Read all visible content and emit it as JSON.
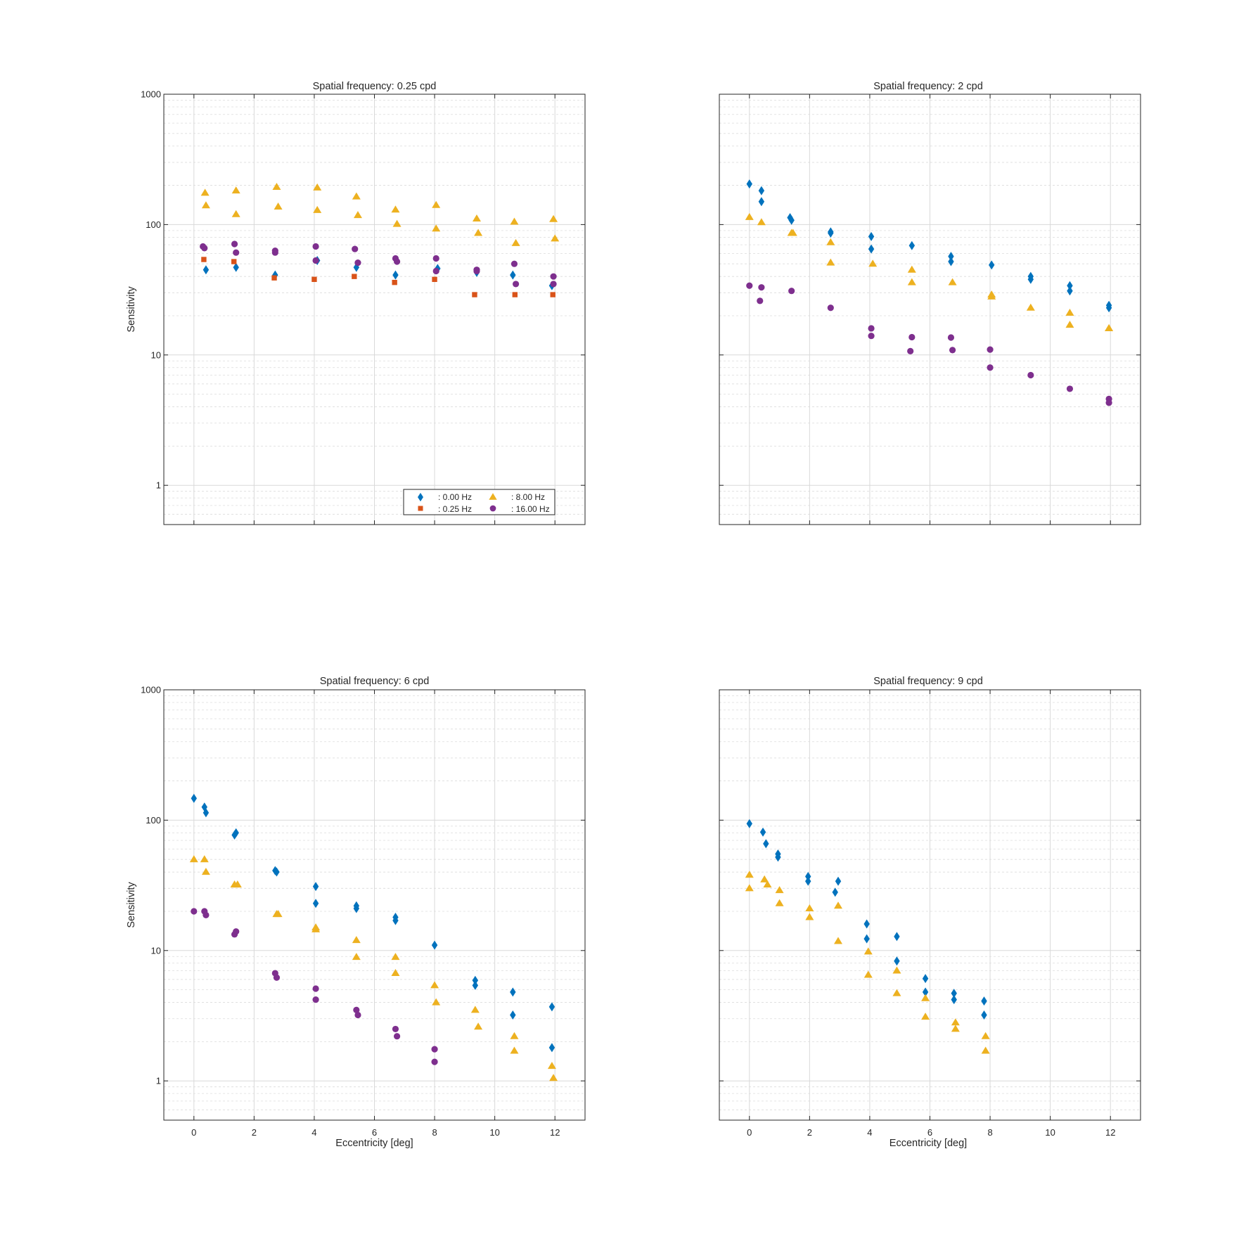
{
  "figure": {
    "background": "#ffffff",
    "series_colors": {
      "0.00 Hz": "#0072BD",
      "0.25 Hz": "#D95319",
      "8.00 Hz": "#EDB120",
      "16.00 Hz": "#7E2F8E"
    },
    "legend": {
      "entries": [
        {
          "label": ": 0.00 Hz",
          "series": "0.00 Hz",
          "marker": "diamond"
        },
        {
          "label": ": 0.25 Hz",
          "series": "0.25 Hz",
          "marker": "square"
        },
        {
          "label": ": 8.00 Hz",
          "series": "8.00 Hz",
          "marker": "triangle"
        },
        {
          "label": ": 16.00 Hz",
          "series": "16.00 Hz",
          "marker": "circle"
        }
      ],
      "location": "bottom-right of first panel",
      "columns": 2
    }
  },
  "chart_data": [
    {
      "type": "scatter",
      "title": "Spatial frequency: 0.25 cpd",
      "xlabel": "",
      "ylabel": "Sensitivity",
      "xscale": "linear",
      "yscale": "log",
      "xlim": [
        -1,
        13
      ],
      "ylim": [
        0.5,
        1000
      ],
      "xticks": [
        0,
        2,
        4,
        6,
        8,
        10,
        12
      ],
      "xticklabels": [],
      "yticks": [
        1,
        10,
        100,
        1000
      ],
      "yticklabels": [
        "1",
        "10",
        "100",
        "1000"
      ],
      "grid": true,
      "minor_grid": true,
      "series": [
        {
          "name": "0.00 Hz",
          "marker": "diamond",
          "color": "#0072BD",
          "points": [
            [
              0.4,
              45
            ],
            [
              1.4,
              47
            ],
            [
              2.7,
              41
            ],
            [
              4.1,
              53
            ],
            [
              5.4,
              47
            ],
            [
              6.7,
              41
            ],
            [
              8.1,
              46
            ],
            [
              9.4,
              43
            ],
            [
              10.6,
              41
            ],
            [
              11.9,
              34
            ]
          ]
        },
        {
          "name": "0.25 Hz",
          "marker": "square",
          "color": "#D95319",
          "points": [
            [
              0.33,
              54
            ],
            [
              1.33,
              52
            ],
            [
              2.67,
              39
            ],
            [
              4.0,
              38
            ],
            [
              5.33,
              40
            ],
            [
              6.67,
              36
            ],
            [
              8.0,
              38
            ],
            [
              9.33,
              29
            ],
            [
              10.67,
              29
            ],
            [
              11.93,
              29
            ]
          ]
        },
        {
          "name": "8.00 Hz",
          "marker": "triangle",
          "color": "#EDB120",
          "points": [
            [
              0.37,
              175
            ],
            [
              0.4,
              140
            ],
            [
              1.4,
              182
            ],
            [
              1.4,
              120
            ],
            [
              2.75,
              194
            ],
            [
              2.8,
              137
            ],
            [
              4.1,
              192
            ],
            [
              4.1,
              129
            ],
            [
              5.4,
              164
            ],
            [
              5.45,
              118
            ],
            [
              6.7,
              130
            ],
            [
              6.75,
              101
            ],
            [
              8.05,
              141
            ],
            [
              8.05,
              93
            ],
            [
              9.4,
              111
            ],
            [
              9.45,
              86
            ],
            [
              10.65,
              105
            ],
            [
              10.7,
              72
            ],
            [
              11.95,
              110
            ],
            [
              12.0,
              78
            ]
          ]
        },
        {
          "name": "16.00 Hz",
          "marker": "circle",
          "color": "#7E2F8E",
          "points": [
            [
              0.3,
              68
            ],
            [
              0.35,
              66
            ],
            [
              1.35,
              71
            ],
            [
              1.4,
              61
            ],
            [
              2.7,
              63
            ],
            [
              2.7,
              61
            ],
            [
              4.05,
              68
            ],
            [
              4.05,
              53
            ],
            [
              5.35,
              65
            ],
            [
              5.45,
              51
            ],
            [
              6.7,
              55
            ],
            [
              6.75,
              52
            ],
            [
              8.05,
              55
            ],
            [
              8.05,
              44
            ],
            [
              9.4,
              45
            ],
            [
              9.4,
              44
            ],
            [
              10.65,
              50
            ],
            [
              10.7,
              35
            ],
            [
              11.95,
              40
            ],
            [
              11.95,
              35
            ]
          ]
        }
      ]
    },
    {
      "type": "scatter",
      "title": "Spatial frequency: 2 cpd",
      "xlabel": "",
      "ylabel": "",
      "xscale": "linear",
      "yscale": "log",
      "xlim": [
        -1,
        13
      ],
      "ylim": [
        0.5,
        1000
      ],
      "xticks": [
        0,
        2,
        4,
        6,
        8,
        10,
        12
      ],
      "xticklabels": [],
      "yticks": [
        1,
        10,
        100,
        1000
      ],
      "yticklabels": [],
      "grid": true,
      "minor_grid": true,
      "series": [
        {
          "name": "0.00 Hz",
          "marker": "diamond",
          "color": "#0072BD",
          "points": [
            [
              0.0,
              205
            ],
            [
              0.4,
              182
            ],
            [
              0.4,
              150
            ],
            [
              1.35,
              113
            ],
            [
              1.4,
              108
            ],
            [
              2.7,
              88
            ],
            [
              2.7,
              86
            ],
            [
              4.05,
              81
            ],
            [
              4.05,
              65
            ],
            [
              5.4,
              69
            ],
            [
              6.7,
              57
            ],
            [
              6.7,
              52
            ],
            [
              8.05,
              49
            ],
            [
              9.35,
              40
            ],
            [
              9.35,
              38
            ],
            [
              10.65,
              34
            ],
            [
              10.65,
              31
            ],
            [
              11.95,
              24
            ],
            [
              11.95,
              23
            ]
          ]
        },
        {
          "name": "8.00 Hz",
          "marker": "triangle",
          "color": "#EDB120",
          "points": [
            [
              0.0,
              114
            ],
            [
              0.4,
              104
            ],
            [
              1.4,
              86
            ],
            [
              1.45,
              86
            ],
            [
              2.7,
              73
            ],
            [
              2.7,
              51
            ],
            [
              4.1,
              50
            ],
            [
              5.4,
              45
            ],
            [
              5.4,
              36
            ],
            [
              6.75,
              36
            ],
            [
              8.05,
              29
            ],
            [
              8.05,
              28
            ],
            [
              9.35,
              23
            ],
            [
              10.65,
              21
            ],
            [
              10.65,
              17
            ],
            [
              11.95,
              16
            ],
            [
              11.95,
              16
            ]
          ]
        },
        {
          "name": "16.00 Hz",
          "marker": "circle",
          "color": "#7E2F8E",
          "points": [
            [
              0.0,
              34
            ],
            [
              0.35,
              26
            ],
            [
              0.4,
              33
            ],
            [
              1.4,
              31
            ],
            [
              2.7,
              23
            ],
            [
              4.05,
              16
            ],
            [
              4.05,
              14
            ],
            [
              5.4,
              13.7
            ],
            [
              5.35,
              10.7
            ],
            [
              6.7,
              13.6
            ],
            [
              6.75,
              10.9
            ],
            [
              8.0,
              11
            ],
            [
              8.0,
              8
            ],
            [
              9.35,
              7
            ],
            [
              10.65,
              5.5
            ],
            [
              11.95,
              4.6
            ],
            [
              11.95,
              4.3
            ]
          ]
        }
      ]
    },
    {
      "type": "scatter",
      "title": "Spatial frequency: 6 cpd",
      "xlabel": "Eccentricity [deg]",
      "ylabel": "Sensitivity",
      "xscale": "linear",
      "yscale": "log",
      "xlim": [
        -1,
        13
      ],
      "ylim": [
        0.5,
        1000
      ],
      "xticks": [
        0,
        2,
        4,
        6,
        8,
        10,
        12
      ],
      "xticklabels": [
        "0",
        "2",
        "4",
        "6",
        "8",
        "10",
        "12"
      ],
      "yticks": [
        1,
        10,
        100,
        1000
      ],
      "yticklabels": [
        "1",
        "10",
        "100",
        "1000"
      ],
      "grid": true,
      "minor_grid": true,
      "series": [
        {
          "name": "0.00 Hz",
          "marker": "diamond",
          "color": "#0072BD",
          "points": [
            [
              0.0,
              147
            ],
            [
              0.35,
              126
            ],
            [
              0.4,
              114
            ],
            [
              1.35,
              77
            ],
            [
              1.4,
              80
            ],
            [
              2.7,
              41
            ],
            [
              2.75,
              40
            ],
            [
              4.05,
              31
            ],
            [
              4.05,
              23
            ],
            [
              5.4,
              22
            ],
            [
              5.4,
              21
            ],
            [
              6.7,
              18
            ],
            [
              6.7,
              17
            ],
            [
              8.0,
              11
            ],
            [
              9.35,
              5.9
            ],
            [
              9.35,
              5.4
            ],
            [
              10.6,
              4.8
            ],
            [
              10.6,
              3.2
            ],
            [
              11.9,
              3.7
            ],
            [
              11.9,
              1.8
            ]
          ]
        },
        {
          "name": "8.00 Hz",
          "marker": "triangle",
          "color": "#EDB120",
          "points": [
            [
              0.0,
              50
            ],
            [
              0.35,
              50
            ],
            [
              0.4,
              40
            ],
            [
              1.35,
              32
            ],
            [
              1.45,
              32
            ],
            [
              2.75,
              19
            ],
            [
              2.8,
              19
            ],
            [
              4.05,
              15
            ],
            [
              4.05,
              14.5
            ],
            [
              5.4,
              12
            ],
            [
              5.4,
              8.9
            ],
            [
              6.7,
              8.9
            ],
            [
              6.7,
              6.7
            ],
            [
              8.0,
              5.4
            ],
            [
              8.05,
              4
            ],
            [
              9.35,
              3.5
            ],
            [
              9.45,
              2.6
            ],
            [
              10.65,
              2.2
            ],
            [
              10.65,
              1.7
            ],
            [
              11.9,
              1.3
            ],
            [
              11.95,
              1.05
            ]
          ]
        },
        {
          "name": "16.00 Hz",
          "marker": "circle",
          "color": "#7E2F8E",
          "points": [
            [
              0.0,
              20
            ],
            [
              0.35,
              20
            ],
            [
              0.4,
              18.7
            ],
            [
              1.35,
              13.3
            ],
            [
              1.4,
              14
            ],
            [
              2.7,
              6.7
            ],
            [
              2.75,
              6.2
            ],
            [
              4.05,
              5.1
            ],
            [
              4.05,
              4.2
            ],
            [
              5.4,
              3.5
            ],
            [
              5.45,
              3.2
            ],
            [
              6.7,
              2.5
            ],
            [
              6.75,
              2.2
            ],
            [
              8.0,
              1.75
            ],
            [
              8.0,
              1.4
            ]
          ]
        }
      ]
    },
    {
      "type": "scatter",
      "title": "Spatial frequency: 9 cpd",
      "xlabel": "Eccentricity [deg]",
      "ylabel": "",
      "xscale": "linear",
      "yscale": "log",
      "xlim": [
        -1,
        13
      ],
      "ylim": [
        0.5,
        1000
      ],
      "xticks": [
        0,
        2,
        4,
        6,
        8,
        10,
        12
      ],
      "xticklabels": [
        "0",
        "2",
        "4",
        "6",
        "8",
        "10",
        "12"
      ],
      "yticks": [
        1,
        10,
        100,
        1000
      ],
      "yticklabels": [],
      "grid": true,
      "minor_grid": true,
      "series": [
        {
          "name": "0.00 Hz",
          "marker": "diamond",
          "color": "#0072BD",
          "points": [
            [
              0.0,
              94
            ],
            [
              0.45,
              81
            ],
            [
              0.55,
              66
            ],
            [
              0.95,
              55
            ],
            [
              0.95,
              52
            ],
            [
              1.95,
              37
            ],
            [
              1.95,
              34
            ],
            [
              2.85,
              28
            ],
            [
              2.95,
              34
            ],
            [
              3.9,
              16
            ],
            [
              3.9,
              12.3
            ],
            [
              4.9,
              12.8
            ],
            [
              4.9,
              8.3
            ],
            [
              5.85,
              6.1
            ],
            [
              5.85,
              4.8
            ],
            [
              6.8,
              4.7
            ],
            [
              6.8,
              4.2
            ],
            [
              7.8,
              4.1
            ],
            [
              7.8,
              3.2
            ]
          ]
        },
        {
          "name": "8.00 Hz",
          "marker": "triangle",
          "color": "#EDB120",
          "points": [
            [
              0.0,
              38
            ],
            [
              0.0,
              30
            ],
            [
              0.5,
              35
            ],
            [
              0.6,
              32
            ],
            [
              1.0,
              29
            ],
            [
              1.0,
              23
            ],
            [
              2.0,
              21
            ],
            [
              2.0,
              18
            ],
            [
              2.95,
              22
            ],
            [
              2.95,
              11.8
            ],
            [
              3.95,
              9.8
            ],
            [
              3.95,
              6.5
            ],
            [
              4.9,
              7
            ],
            [
              4.9,
              4.7
            ],
            [
              5.85,
              4.3
            ],
            [
              5.85,
              3.1
            ],
            [
              6.85,
              2.8
            ],
            [
              6.85,
              2.5
            ],
            [
              7.85,
              2.2
            ],
            [
              7.85,
              1.7
            ]
          ]
        }
      ]
    }
  ]
}
